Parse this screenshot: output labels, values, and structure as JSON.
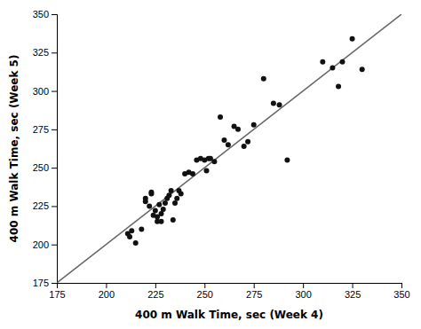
{
  "chart_data": {
    "type": "scatter",
    "xlabel": "400 m Walk Time, sec (Week 4)",
    "ylabel": "400 m Walk Time, sec (Week 5)",
    "series": [
      {
        "type": "line",
        "color": "#666666",
        "x": [
          175,
          350
        ],
        "values": [
          175,
          350
        ]
      },
      {
        "type": "scatter",
        "color": "#111111",
        "x": [
          211,
          212,
          213,
          215,
          218,
          220,
          220,
          222,
          223,
          223,
          224,
          225,
          226,
          226,
          227,
          228,
          228,
          229,
          230,
          231,
          232,
          233,
          234,
          235,
          236,
          237,
          238,
          240,
          242,
          244,
          246,
          248,
          250,
          251,
          252,
          253,
          255,
          258,
          260,
          262,
          265,
          267,
          270,
          272,
          275,
          280,
          285,
          288,
          292,
          310,
          315,
          318,
          320,
          325,
          330
        ],
        "values": [
          207,
          205,
          209,
          201,
          210,
          228,
          230,
          225,
          233,
          234,
          219,
          222,
          215,
          218,
          226,
          215,
          220,
          223,
          227,
          230,
          232,
          235,
          216,
          227,
          230,
          235,
          233,
          246,
          247,
          246,
          255,
          256,
          255,
          248,
          256,
          256,
          254,
          283,
          268,
          265,
          277,
          275,
          264,
          267,
          278,
          308,
          292,
          291,
          255,
          319,
          315,
          303,
          319,
          334,
          314
        ]
      }
    ],
    "xlim": [
      175,
      350
    ],
    "ylim": [
      175,
      350
    ],
    "xticks": [
      175,
      200,
      225,
      250,
      275,
      300,
      325,
      350
    ],
    "yticks": [
      175,
      200,
      225,
      250,
      275,
      300,
      325,
      350
    ],
    "grid": false
  }
}
